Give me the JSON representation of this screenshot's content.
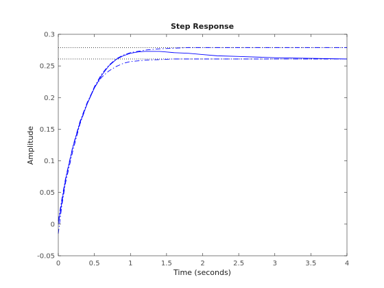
{
  "chart_data": {
    "type": "line",
    "title": "Step Response",
    "xlabel": "Time (seconds)",
    "ylabel": "Amplitude",
    "xlim": [
      0,
      4
    ],
    "ylim": [
      -0.05,
      0.3
    ],
    "xticks": [
      0,
      0.5,
      1,
      1.5,
      2,
      2.5,
      3,
      3.5,
      4
    ],
    "xtick_labels": [
      "0",
      "0.5",
      "1",
      "1.5",
      "2",
      "2.5",
      "3",
      "3.5",
      "4"
    ],
    "yticks": [
      -0.05,
      0,
      0.05,
      0.1,
      0.15,
      0.2,
      0.25,
      0.3
    ],
    "ytick_labels": [
      "-0.05",
      "0",
      "0.05",
      "0.1",
      "0.15",
      "0.2",
      "0.25",
      "0.3"
    ],
    "grid": false,
    "legend": "none",
    "colors": {
      "axes": "#262626",
      "tick_text": "#4d4d4d",
      "series": "#0000ff",
      "reference": "#000000"
    },
    "series": [
      {
        "style": "solid",
        "color": "#0000ff",
        "x": [
          0,
          0.05,
          0.1,
          0.2,
          0.3,
          0.4,
          0.5,
          0.6,
          0.7,
          0.8,
          0.9,
          1.0,
          1.1,
          1.2,
          1.3,
          1.4,
          1.5,
          1.6,
          1.8,
          2.0,
          2.2,
          2.5,
          3.0,
          3.5,
          4.0
        ],
        "y": [
          0,
          0.035,
          0.07,
          0.121,
          0.16,
          0.19,
          0.215,
          0.235,
          0.25,
          0.26,
          0.266,
          0.27,
          0.272,
          0.273,
          0.273,
          0.273,
          0.272,
          0.271,
          0.27,
          0.268,
          0.266,
          0.265,
          0.263,
          0.262,
          0.261
        ]
      },
      {
        "style": "dashdot",
        "color": "#0000ff",
        "x": [
          0,
          0.05,
          0.1,
          0.2,
          0.3,
          0.4,
          0.5,
          0.6,
          0.7,
          0.8,
          0.9,
          1.0,
          1.2,
          1.4,
          1.6,
          1.8,
          2.0,
          2.5,
          3.0,
          3.5,
          4.0
        ],
        "y": [
          -0.015,
          0.03,
          0.065,
          0.115,
          0.158,
          0.19,
          0.217,
          0.237,
          0.251,
          0.261,
          0.267,
          0.271,
          0.275,
          0.277,
          0.278,
          0.279,
          0.279,
          0.279,
          0.279,
          0.279,
          0.279
        ]
      },
      {
        "style": "dashdot",
        "color": "#0000ff",
        "x": [
          0,
          0.05,
          0.1,
          0.2,
          0.3,
          0.4,
          0.5,
          0.6,
          0.7,
          0.8,
          0.9,
          1.0,
          1.2,
          1.4,
          1.6,
          1.8,
          2.0,
          2.5,
          3.0,
          3.5,
          4.0
        ],
        "y": [
          0.005,
          0.04,
          0.072,
          0.122,
          0.162,
          0.192,
          0.216,
          0.232,
          0.242,
          0.249,
          0.254,
          0.257,
          0.259,
          0.26,
          0.261,
          0.261,
          0.261,
          0.261,
          0.261,
          0.261,
          0.261
        ]
      }
    ],
    "reference_lines": [
      {
        "style": "dotted",
        "color": "#000000",
        "y": 0.279
      },
      {
        "style": "dotted",
        "color": "#000000",
        "y": 0.261
      }
    ]
  }
}
